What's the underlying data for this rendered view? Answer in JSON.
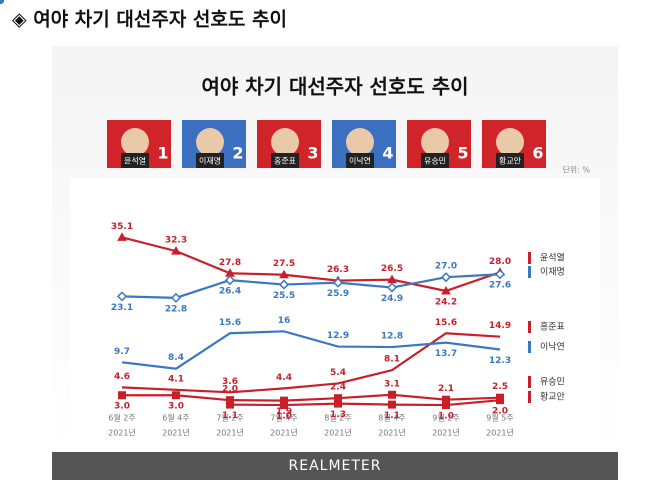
{
  "header": {
    "title": "◈ 여야 차기 대선주자 선호도 추이"
  },
  "chart_data": {
    "type": "line",
    "title": "여야 차기 대선주자 선호도 추이",
    "cards": [
      {
        "name": "윤석열",
        "number": 1,
        "color": "#d1232a"
      },
      {
        "name": "이재명",
        "number": 2,
        "color": "#3b6fc0"
      },
      {
        "name": "홍준표",
        "number": 3,
        "color": "#d1232a"
      },
      {
        "name": "이낙연",
        "number": 4,
        "color": "#3b6fc0"
      },
      {
        "name": "유승민",
        "number": 5,
        "color": "#d1232a"
      },
      {
        "name": "황교안",
        "number": 6,
        "color": "#d1232a"
      }
    ],
    "unit": "단위: %",
    "categories": [
      "6월 2주",
      "6월 4주",
      "7월 2주",
      "7월 4주",
      "8월 2주",
      "8월 4주",
      "9월 2주",
      "9월 5주"
    ],
    "category_years": [
      "2021년",
      "2021년",
      "2021년",
      "2021년",
      "2021년",
      "2021년",
      "2021년",
      "2021년"
    ],
    "ylim": [
      0,
      37
    ],
    "series": [
      {
        "name": "윤석열",
        "color": "#c8202a",
        "marker": "triangle",
        "values": [
          35.1,
          32.3,
          27.8,
          27.5,
          26.3,
          26.5,
          24.2,
          28.0
        ],
        "value_labels": [
          "35.1",
          "32.3",
          "27.8",
          "27.5",
          "26.3",
          "26.5",
          "24.2",
          "28.0"
        ]
      },
      {
        "name": "이재명",
        "color": "#3a78c2",
        "marker": "diamond",
        "values": [
          23.1,
          22.8,
          26.4,
          25.5,
          25.9,
          24.9,
          27.0,
          27.6
        ],
        "value_labels": [
          "23.1",
          "22.8",
          "26.4",
          "25.5",
          "25.9",
          "24.9",
          "27.0",
          "27.6"
        ]
      },
      {
        "name": "홍준표",
        "color": "#c8202a",
        "marker": "circle",
        "values": [
          4.6,
          4.1,
          3.6,
          4.4,
          5.4,
          8.1,
          15.6,
          14.9
        ]
      },
      {
        "name": "이낙연",
        "color": "#3a78c2",
        "marker": "circle",
        "values": [
          9.7,
          8.4,
          15.6,
          16.0,
          12.9,
          12.8,
          13.7,
          12.3
        ]
      },
      {
        "name": "유승민",
        "color": "#c8202a",
        "marker": "square",
        "values": [
          3.0,
          3.0,
          2.0,
          1.9,
          2.4,
          3.1,
          2.1,
          2.5
        ],
        "value_labels": [
          "3.0",
          "3.0",
          "2.0",
          "1.9",
          "2.4",
          "3.1",
          "2.1",
          "2.5"
        ]
      },
      {
        "name": "황교안",
        "color": "#c8202a",
        "marker": "square",
        "values": [
          null,
          null,
          1.1,
          1.0,
          1.3,
          1.1,
          1.0,
          2.0
        ],
        "value_labels": [
          null,
          null,
          "1.1",
          "1.0",
          "1.3",
          "1.1",
          "1.0",
          "2.0"
        ]
      }
    ]
  },
  "footer": "REALMETER"
}
